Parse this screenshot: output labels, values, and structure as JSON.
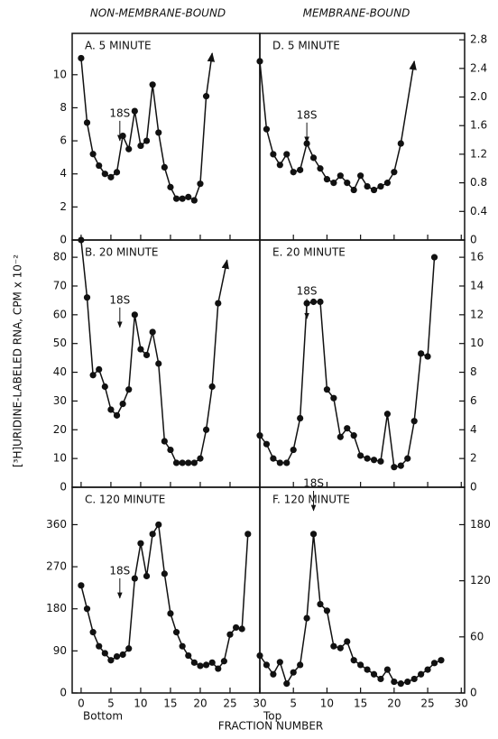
{
  "column_titles": [
    "NON-MEMBRANE-BOUND",
    "MEMBRANE-BOUND"
  ],
  "y_label": "[³H]URIDINE-LABELED RNA, CPM x 10⁻²",
  "x_label": "FRACTION NUMBER",
  "chart_data": [
    {
      "type": "line",
      "title": "A. 5 MINUTE",
      "y_axis": "left",
      "xtick_labels": false,
      "color": "#111",
      "x": [
        0,
        1,
        2,
        3,
        4,
        5,
        6,
        7,
        8,
        9,
        10,
        11,
        12,
        13,
        14,
        15,
        16,
        17,
        18,
        19,
        20,
        21
      ],
      "values": [
        11.0,
        7.1,
        5.2,
        4.5,
        4.0,
        3.8,
        4.1,
        6.3,
        5.5,
        7.8,
        5.7,
        6.0,
        9.4,
        6.5,
        4.4,
        3.2,
        2.5,
        2.5,
        2.6,
        2.4,
        3.4,
        8.7
      ],
      "arrow": {
        "x": 22,
        "value": 11.3
      },
      "annotation": {
        "text": "18S",
        "x": 6.5,
        "y": 5.9
      },
      "xlim": [
        -1.5,
        30
      ],
      "ylim": [
        0,
        12.5
      ],
      "yticks": [
        0,
        2,
        4,
        6,
        8,
        10
      ],
      "xticks": [
        0,
        5,
        10,
        15,
        20,
        25,
        30
      ]
    },
    {
      "type": "line",
      "title": "B. 20 MINUTE",
      "y_axis": "left",
      "xtick_labels": false,
      "color": "#111",
      "x": [
        0,
        1,
        2,
        3,
        4,
        5,
        6,
        7,
        8,
        9,
        10,
        11,
        12,
        13,
        14,
        15,
        16,
        17,
        18,
        19,
        20,
        21,
        22,
        23
      ],
      "values": [
        86,
        66,
        39,
        41,
        35,
        27,
        25,
        29,
        34,
        60,
        48,
        46,
        54,
        43,
        16,
        13,
        8.5,
        8.5,
        8.5,
        8.5,
        10,
        20,
        35,
        64
      ],
      "arrow": {
        "x": 24.5,
        "value": 79
      },
      "annotation": {
        "text": "18S",
        "x": 6.5,
        "y": 55
      },
      "xlim": [
        -1.5,
        30
      ],
      "ylim": [
        0,
        86
      ],
      "yticks": [
        0,
        10,
        20,
        30,
        40,
        50,
        60,
        70,
        80
      ],
      "xticks": [
        0,
        5,
        10,
        15,
        20,
        25,
        30
      ]
    },
    {
      "type": "line",
      "title": "C. 120 MINUTE",
      "y_axis": "left",
      "xtick_labels": true,
      "x_note": "Bottom",
      "color": "#111",
      "x": [
        0,
        1,
        2,
        3,
        4,
        5,
        6,
        7,
        8,
        9,
        10,
        11,
        12,
        13,
        14,
        15,
        16,
        17,
        18,
        19,
        20,
        21,
        22,
        23,
        24,
        25,
        26,
        27,
        28
      ],
      "values": [
        230,
        180,
        130,
        100,
        85,
        70,
        78,
        82,
        95,
        245,
        320,
        250,
        340,
        360,
        255,
        170,
        130,
        100,
        80,
        65,
        58,
        60,
        65,
        52,
        68,
        125,
        140,
        137,
        340
      ],
      "annotation": {
        "text": "18S",
        "x": 6.5,
        "y": 199
      },
      "xlim": [
        -1.5,
        30
      ],
      "ylim": [
        0,
        440
      ],
      "yticks": [
        0,
        90,
        180,
        270,
        360
      ],
      "xticks": [
        0,
        5,
        10,
        15,
        20,
        25,
        30
      ]
    },
    {
      "type": "line",
      "title": "D. 5 MINUTE",
      "y_axis": "right",
      "xtick_labels": false,
      "color": "#111",
      "x": [
        0,
        1,
        2,
        3,
        4,
        5,
        6,
        7,
        8,
        9,
        10,
        11,
        12,
        13,
        14,
        15,
        16,
        17,
        18,
        19,
        20,
        21,
        22
      ],
      "values": [
        2.5,
        1.55,
        1.2,
        1.05,
        1.2,
        0.95,
        0.98,
        1.35,
        1.15,
        1.0,
        0.85,
        0.8,
        0.9,
        0.8,
        0.7,
        0.9,
        0.75,
        0.7,
        0.75,
        0.8,
        0.95,
        1.35,
        null
      ],
      "arrow": {
        "x": 23,
        "value": 2.5
      },
      "annotation": {
        "text": "18S",
        "x": 7,
        "y": 1.34
      },
      "xlim": [
        0,
        30.5
      ],
      "ylim": [
        0,
        2.89
      ],
      "yticks": [
        0,
        0.4,
        0.8,
        {
          "value": 1.2,
          "label": "1.2"
        },
        1.6,
        {
          "value": 2,
          "label": "2.0"
        },
        2.4,
        2.8
      ],
      "xticks": [
        5,
        10,
        15,
        20,
        25,
        30
      ]
    },
    {
      "type": "line",
      "title": "E. 20 MINUTE",
      "y_axis": "right",
      "xtick_labels": false,
      "color": "#111",
      "x": [
        0,
        1,
        2,
        3,
        4,
        5,
        6,
        7,
        8,
        9,
        10,
        11,
        12,
        13,
        14,
        15,
        16,
        17,
        18,
        19,
        20,
        21,
        22,
        23,
        24,
        25,
        26
      ],
      "values": [
        3.6,
        3.0,
        2.0,
        1.7,
        1.7,
        2.6,
        4.8,
        12.8,
        12.9,
        12.9,
        6.8,
        6.2,
        3.5,
        4.1,
        3.6,
        2.2,
        2.0,
        1.9,
        1.8,
        5.1,
        1.4,
        1.5,
        2.0,
        4.6,
        9.3,
        9.1,
        16
      ],
      "annotation": {
        "text": "18S",
        "x": 7,
        "y": 11.6
      },
      "xlim": [
        0,
        30.5
      ],
      "ylim": [
        0,
        17.2
      ],
      "yticks": [
        0,
        2,
        4,
        6,
        8,
        10,
        12,
        14,
        16
      ],
      "xticks": [
        5,
        10,
        15,
        20,
        25,
        30
      ]
    },
    {
      "type": "line",
      "title": "F. 120 MINUTE",
      "y_axis": "right",
      "xtick_labels": true,
      "x_note": "Top",
      "color": "#111",
      "x": [
        0,
        1,
        2,
        3,
        4,
        5,
        6,
        7,
        8,
        9,
        10,
        11,
        12,
        13,
        14,
        15,
        16,
        17,
        18,
        19,
        20,
        21,
        22,
        23,
        24,
        25,
        26,
        27
      ],
      "values": [
        40,
        30,
        20,
        33,
        10,
        22,
        30,
        80,
        170,
        95,
        88,
        50,
        48,
        55,
        35,
        30,
        25,
        20,
        15,
        25,
        12,
        10,
        12,
        15,
        20,
        25,
        32,
        35
      ],
      "annotation": {
        "text": "18S",
        "x": 8,
        "y": 193
      },
      "xlim": [
        0,
        30.5
      ],
      "ylim": [
        0,
        220
      ],
      "yticks": [
        0,
        60,
        120,
        180
      ],
      "xticks": [
        5,
        10,
        15,
        20,
        25,
        30
      ]
    }
  ]
}
